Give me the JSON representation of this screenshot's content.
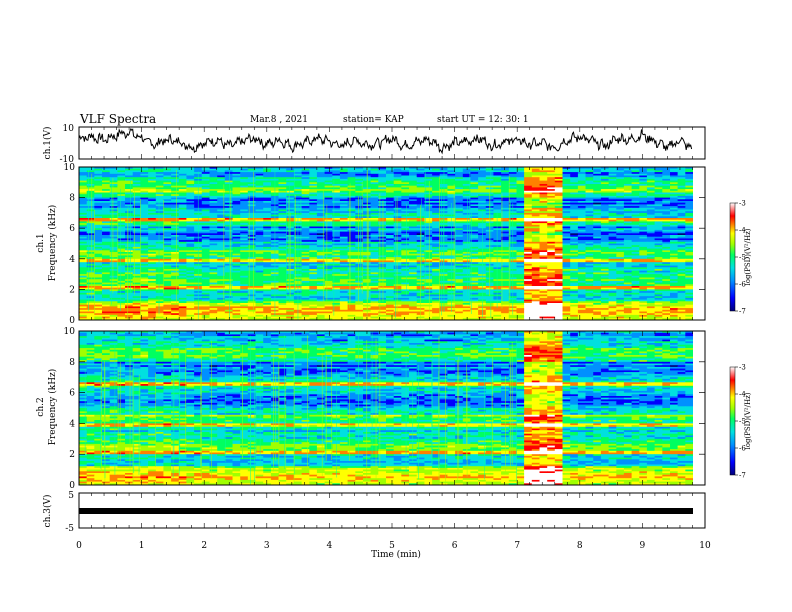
{
  "header": {
    "title": "VLF Spectra",
    "date": "Mar.8  , 2021",
    "station": "station= KAP",
    "start": "start  UT  =   12: 30: 1"
  },
  "colors": {
    "colormap": [
      "#00007a",
      "#0000ff",
      "#0090ff",
      "#00e0e0",
      "#00ff60",
      "#a0ff00",
      "#ffff00",
      "#ff8000",
      "#ff0000",
      "#ffffff"
    ]
  },
  "chart_data": [
    {
      "type": "line",
      "name": "ch1-waveform",
      "ylabel": "ch.1(V)",
      "ylim": [
        -10,
        10
      ],
      "yticks": [
        "10",
        "-10"
      ],
      "xlim": [
        0,
        10
      ],
      "x": [
        0,
        0.2,
        0.4,
        0.6,
        0.8,
        1.0,
        1.2,
        1.4,
        1.6,
        1.8,
        2.0,
        2.2,
        2.4,
        2.6,
        2.8,
        3.0,
        3.2,
        3.4,
        3.6,
        3.8,
        4.0,
        4.2,
        4.4,
        4.6,
        4.8,
        5.0,
        5.2,
        5.4,
        5.6,
        5.8,
        6.0,
        6.2,
        6.4,
        6.6,
        6.8,
        7.0,
        7.2,
        7.4,
        7.6,
        7.8,
        8.0,
        8.2,
        8.4,
        8.6,
        8.8,
        9.0,
        9.2,
        9.4,
        9.6,
        9.8
      ],
      "y": [
        3,
        4,
        2,
        5,
        7,
        3,
        -1,
        2,
        1,
        -3,
        0,
        2,
        -2,
        1,
        3,
        -1,
        2,
        -2,
        0,
        3,
        1,
        -2,
        2,
        -1,
        0,
        3,
        -2,
        1,
        2,
        -3,
        0,
        1,
        3,
        -2,
        1,
        2,
        -1,
        0,
        -3,
        2,
        4,
        1,
        -2,
        3,
        2,
        5,
        1,
        -3,
        2,
        -4
      ]
    },
    {
      "type": "heatmap",
      "name": "ch1-spectrogram",
      "ylabel": "ch.1\nFrequency  (kHz)",
      "ylim": [
        0,
        10
      ],
      "yticks": [
        "0",
        "2",
        "4",
        "6",
        "8",
        "10"
      ],
      "xlim": [
        0,
        10
      ],
      "colorbar": {
        "label": "log(PSD)(V²/Hz)",
        "range": [
          -7,
          -3
        ],
        "ticks": [
          "-3",
          "-4",
          "-5",
          "-6",
          "-7"
        ]
      }
    },
    {
      "type": "heatmap",
      "name": "ch2-spectrogram",
      "ylabel": "ch.2\nFrequency  (kHz)",
      "ylim": [
        0,
        10
      ],
      "yticks": [
        "0",
        "2",
        "4",
        "6",
        "8",
        "10"
      ],
      "xlim": [
        0,
        10
      ],
      "colorbar": {
        "label": "log(PSD)(V²/Hz)",
        "range": [
          -7,
          -3
        ],
        "ticks": [
          "-3",
          "-4",
          "-5",
          "-6",
          "-7"
        ]
      }
    },
    {
      "type": "line",
      "name": "ch3-signal",
      "ylabel": "ch.3(V)",
      "ylim": [
        -5,
        5
      ],
      "yticks": [
        "5",
        "-5"
      ],
      "xlim": [
        0,
        10
      ],
      "x": [
        0,
        9.85
      ],
      "y": [
        0,
        0
      ]
    }
  ],
  "xaxis": {
    "label": "Time  (min)",
    "ticks": [
      "0",
      "1",
      "2",
      "3",
      "4",
      "5",
      "6",
      "7",
      "8",
      "9",
      "10"
    ]
  }
}
